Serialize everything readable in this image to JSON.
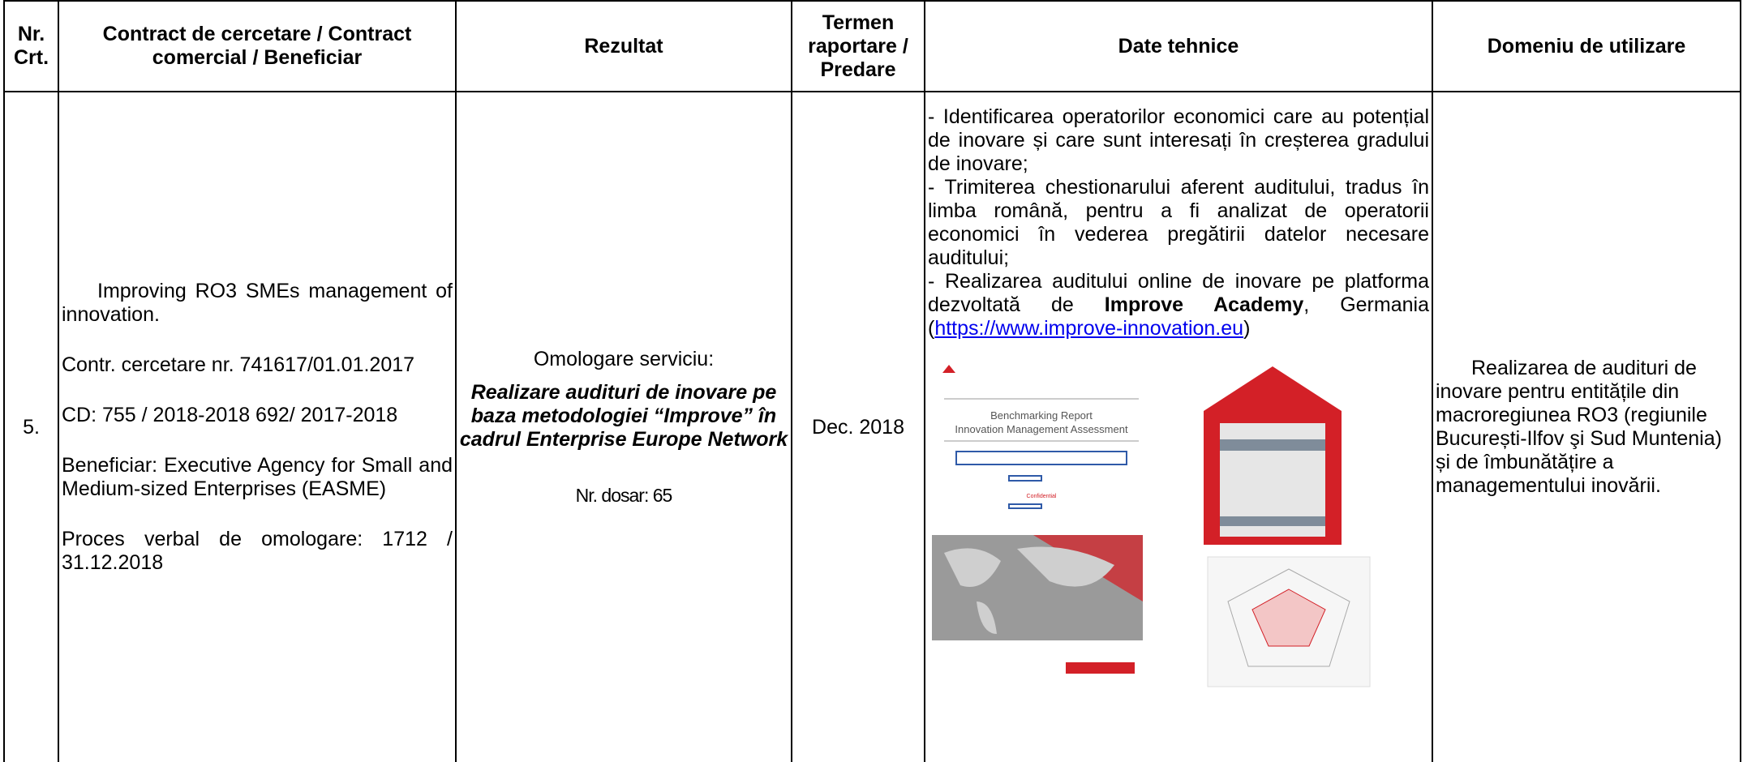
{
  "header": [
    "Nr. Crt.",
    "Contract de cercetare / Contract comercial / Beneficiar",
    "Rezultat",
    "Termen raportare / Predare",
    "Date tehnice",
    "Domeniu de utilizare"
  ],
  "row": {
    "nr": "5.",
    "contract": [
      "Improving RO3 SMEs management of innovation.",
      "Contr. cercetare nr. 741617/01.01.2017",
      "CD: 755 / 2018-2018 692/ 2017-2018",
      "Beneficiar: Executive Agency for Small and Medium-sized Enterprises (EASME)",
      "Proces verbal de omologare: 1712 / 31.12.2018"
    ],
    "rezultat": {
      "intro": "Omologare serviciu:",
      "title": "Realizare audituri de inovare pe baza metodologiei “Improve” în cadrul Enterprise Europe Network",
      "dosar": "Nr. dosar: 65"
    },
    "termen": "Dec. 2018",
    "date_tehnice": {
      "items": [
        "- Identificarea operatorilor economici care au potențial de inovare și care sunt interesați în creșterea gradului de inovare;",
        "- Trimiterea chestionarului aferent auditului, tradus în limba română, pentru a fi analizat de operatorii economici în vederea pregătirii datelor necesare auditului;"
      ],
      "last_start": "- Realizarea auditului online de inovare pe platforma dezvoltată de ",
      "last_bold": "Improve Academy",
      "last_mid": ", Germania (",
      "link": "https://www.improve-innovation.eu",
      "last_end": ")",
      "figure_texts": [
        "Benchmarking Report",
        "Innovation Management Assessment",
        "Confidential"
      ]
    },
    "domeniu": "Realizarea de audituri de inovare pentru entitățile din macroregiunea RO3 (regiunile București-Ilfov şi Sud Muntenia) și de îmbunătățire a managementului inovării."
  }
}
